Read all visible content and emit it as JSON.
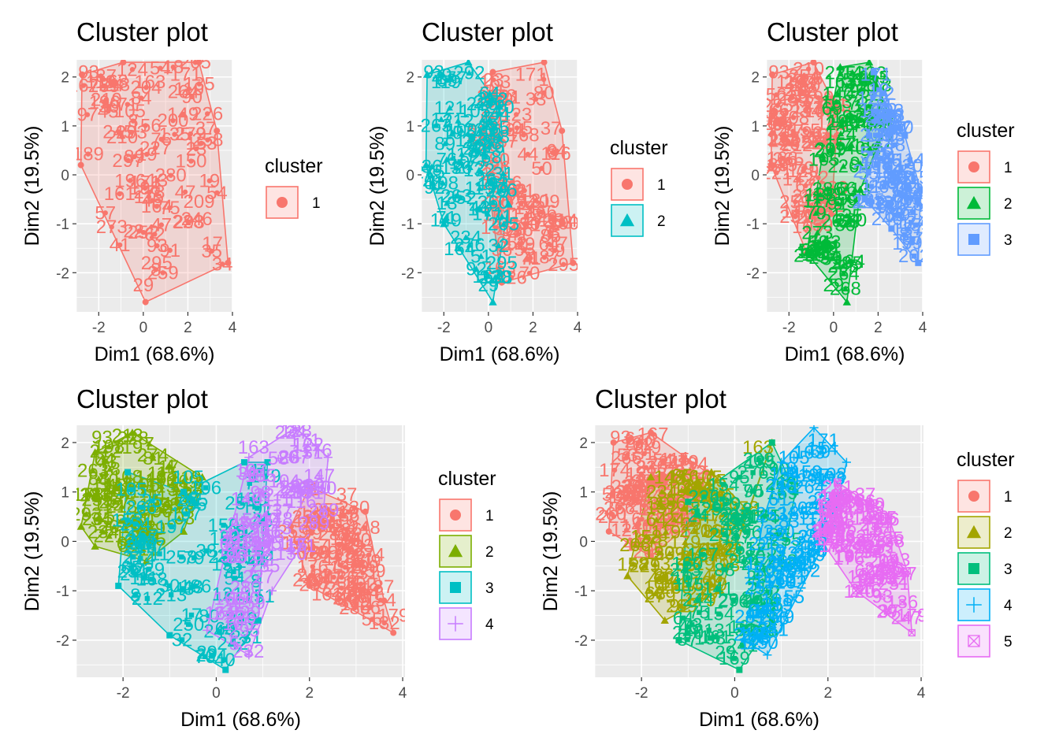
{
  "figure": {
    "background": "#ffffff",
    "panel_background": "#ebebeb",
    "grid_color": "#ffffff",
    "palette": {
      "k1": [
        "#F8766D"
      ],
      "k2": [
        "#F8766D",
        "#00BFC4"
      ],
      "k3": [
        "#F8766D",
        "#00BA38",
        "#619CFF"
      ],
      "k4": [
        "#F8766D",
        "#7CAE00",
        "#00BFC4",
        "#C77CFF"
      ],
      "k5": [
        "#F8766D",
        "#A3A500",
        "#00BF7D",
        "#00B0F6",
        "#E76BF3"
      ]
    }
  },
  "chart_data": [
    {
      "type": "scatter",
      "title": "Cluster plot",
      "xlabel": "Dim1 (68.6%)",
      "ylabel": "Dim2 (19.5%)",
      "xticks": [
        -2,
        0,
        2,
        4
      ],
      "yticks": [
        -2,
        -1,
        0,
        1,
        2
      ],
      "xlim": [
        -3.0,
        4.0
      ],
      "ylim": [
        -2.8,
        2.35
      ],
      "legend": {
        "title": "cluster",
        "entries": [
          "1"
        ]
      },
      "clusters": [
        {
          "label": "1",
          "shape": "circle",
          "hull": [
            [
              -2.75,
              2.05
            ],
            [
              -0.9,
              2.3
            ],
            [
              2.5,
              2.3
            ],
            [
              3.3,
              0.9
            ],
            [
              3.8,
              -1.8
            ],
            [
              0.1,
              -2.6
            ],
            [
              -2.8,
              0.2
            ]
          ],
          "labels": [
            {
              "t": "93",
              "x": -2.45,
              "y": 2.1
            },
            {
              "t": "119",
              "x": -1.9,
              "y": 1.9
            },
            {
              "t": "105",
              "x": -0.6,
              "y": 1.3
            },
            {
              "t": "163",
              "x": 0.3,
              "y": 1.9
            },
            {
              "t": "171",
              "x": 1.9,
              "y": 2.05
            },
            {
              "t": "264",
              "x": 1.8,
              "y": 1.7
            },
            {
              "t": "37",
              "x": 2.8,
              "y": 0.95
            },
            {
              "t": "246",
              "x": 2.4,
              "y": -0.9
            },
            {
              "t": "17",
              "x": 3.1,
              "y": -1.4
            },
            {
              "t": "29",
              "x": 0.0,
              "y": -2.25
            },
            {
              "t": "295",
              "x": 0.6,
              "y": -1.8
            },
            {
              "t": "209",
              "x": 2.5,
              "y": -0.55
            }
          ]
        }
      ]
    },
    {
      "type": "scatter",
      "title": "Cluster plot",
      "xlabel": "Dim1 (68.6%)",
      "ylabel": "Dim2 (19.5%)",
      "xticks": [
        -2,
        0,
        2,
        4
      ],
      "yticks": [
        -2,
        -1,
        0,
        1,
        2
      ],
      "xlim": [
        -3.0,
        4.0
      ],
      "ylim": [
        -2.8,
        2.35
      ],
      "legend": {
        "title": "cluster",
        "entries": [
          "1",
          "2"
        ]
      },
      "clusters": [
        {
          "label": "1",
          "shape": "circle",
          "hull": [
            [
              0.2,
              2.1
            ],
            [
              2.5,
              2.3
            ],
            [
              3.3,
              0.9
            ],
            [
              3.8,
              -1.8
            ],
            [
              0.6,
              -2.2
            ],
            [
              -0.3,
              0.8
            ]
          ],
          "labels": [
            {
              "t": "163",
              "x": 0.3,
              "y": 1.9
            },
            {
              "t": "171",
              "x": 1.9,
              "y": 2.05
            },
            {
              "t": "37",
              "x": 2.8,
              "y": 0.95
            },
            {
              "t": "246",
              "x": 2.4,
              "y": -0.9
            },
            {
              "t": "17",
              "x": 3.1,
              "y": -1.4
            },
            {
              "t": "209",
              "x": 2.5,
              "y": -0.55
            }
          ]
        },
        {
          "label": "2",
          "shape": "triangle",
          "hull": [
            [
              -2.75,
              2.05
            ],
            [
              -0.9,
              2.3
            ],
            [
              0.5,
              1.4
            ],
            [
              0.9,
              -0.6
            ],
            [
              0.2,
              -2.6
            ],
            [
              -2.0,
              -1.0
            ],
            [
              -2.8,
              0.2
            ]
          ],
          "labels": [
            {
              "t": "93",
              "x": -2.45,
              "y": 2.1
            },
            {
              "t": "119",
              "x": -1.9,
              "y": 1.9
            },
            {
              "t": "105",
              "x": -0.6,
              "y": 1.3
            },
            {
              "t": "29",
              "x": 0.0,
              "y": -2.25
            },
            {
              "t": "295",
              "x": 0.6,
              "y": -1.8
            }
          ]
        }
      ]
    },
    {
      "type": "scatter",
      "title": "Cluster plot",
      "xlabel": "Dim1 (68.6%)",
      "ylabel": "Dim2 (19.5%)",
      "xticks": [
        -2,
        0,
        2,
        4
      ],
      "yticks": [
        -2,
        -1,
        0,
        1,
        2
      ],
      "xlim": [
        -3.0,
        4.0
      ],
      "ylim": [
        -2.8,
        2.35
      ],
      "legend": {
        "title": "cluster",
        "entries": [
          "1",
          "2",
          "3"
        ]
      },
      "clusters": [
        {
          "label": "1",
          "shape": "circle",
          "hull": [
            [
              -2.75,
              2.05
            ],
            [
              -0.9,
              2.3
            ],
            [
              0.2,
              1.3
            ],
            [
              -0.1,
              -0.8
            ],
            [
              -1.2,
              -1.6
            ],
            [
              -2.8,
              0.2
            ]
          ],
          "labels": [
            {
              "t": "93",
              "x": -2.45,
              "y": 2.1
            },
            {
              "t": "119",
              "x": -1.9,
              "y": 1.9
            },
            {
              "t": "105",
              "x": -0.6,
              "y": 1.3
            }
          ]
        },
        {
          "label": "2",
          "shape": "triangle",
          "hull": [
            [
              0.3,
              2.2
            ],
            [
              1.6,
              2.3
            ],
            [
              2.5,
              1.2
            ],
            [
              1.2,
              -0.3
            ],
            [
              0.6,
              -2.6
            ],
            [
              -1.2,
              -1.6
            ],
            [
              -0.5,
              0.4
            ]
          ],
          "labels": [
            {
              "t": "163",
              "x": 0.3,
              "y": 1.9
            },
            {
              "t": "264",
              "x": 1.9,
              "y": 1.1
            },
            {
              "t": "29",
              "x": 0.0,
              "y": -2.25
            },
            {
              "t": "295",
              "x": 0.6,
              "y": -1.8
            }
          ]
        },
        {
          "label": "3",
          "shape": "square",
          "hull": [
            [
              1.8,
              2.1
            ],
            [
              3.2,
              0.8
            ],
            [
              3.9,
              -0.3
            ],
            [
              3.8,
              -1.8
            ],
            [
              2.6,
              -1.1
            ],
            [
              1.4,
              -0.5
            ],
            [
              1.6,
              0.8
            ]
          ],
          "labels": [
            {
              "t": "171",
              "x": 1.9,
              "y": 2.05
            },
            {
              "t": "246",
              "x": 2.4,
              "y": -0.9
            },
            {
              "t": "17",
              "x": 3.1,
              "y": -1.4
            }
          ]
        }
      ]
    },
    {
      "type": "scatter",
      "title": "Cluster plot",
      "xlabel": "Dim1 (68.6%)",
      "ylabel": "Dim2 (19.5%)",
      "xticks": [
        -2,
        0,
        2,
        4
      ],
      "yticks": [
        -2,
        -1,
        0,
        1,
        2
      ],
      "xlim": [
        -3.0,
        4.05
      ],
      "ylim": [
        -2.75,
        2.35
      ],
      "legend": {
        "title": "cluster",
        "entries": [
          "1",
          "2",
          "3",
          "4"
        ]
      },
      "clusters": [
        {
          "label": "1",
          "shape": "circle",
          "hull": [
            [
              2.0,
              1.1
            ],
            [
              3.2,
              0.6
            ],
            [
              3.6,
              -1.2
            ],
            [
              3.8,
              -1.85
            ],
            [
              2.0,
              -0.9
            ],
            [
              1.6,
              0.3
            ]
          ],
          "labels": [
            {
              "t": "37",
              "x": 2.8,
              "y": 0.95
            },
            {
              "t": "209",
              "x": 3.2,
              "y": -0.4
            },
            {
              "t": "259",
              "x": 3.3,
              "y": -0.6
            },
            {
              "t": "246",
              "x": 2.8,
              "y": -1.0
            },
            {
              "t": "179",
              "x": 3.8,
              "y": -1.5
            }
          ]
        },
        {
          "label": "2",
          "shape": "triangle",
          "hull": [
            [
              -2.6,
              1.8
            ],
            [
              -1.8,
              2.2
            ],
            [
              -0.3,
              1.3
            ],
            [
              -0.7,
              0.2
            ],
            [
              -1.5,
              -0.4
            ],
            [
              -2.6,
              -0.1
            ],
            [
              -2.9,
              0.3
            ]
          ],
          "labels": [
            {
              "t": "93",
              "x": -2.45,
              "y": 2.1
            },
            {
              "t": "119",
              "x": -1.9,
              "y": 1.9
            },
            {
              "t": "148",
              "x": -1.4,
              "y": 1.3
            }
          ]
        },
        {
          "label": "3",
          "shape": "square",
          "hull": [
            [
              -1.9,
              1.4
            ],
            [
              -0.7,
              1.0
            ],
            [
              0.6,
              1.6
            ],
            [
              1.1,
              1.6
            ],
            [
              0.9,
              -1.6
            ],
            [
              0.2,
              -2.6
            ],
            [
              -1.0,
              -1.9
            ],
            [
              -2.1,
              -0.9
            ]
          ],
          "labels": [
            {
              "t": "105",
              "x": -0.6,
              "y": 1.3
            },
            {
              "t": "29",
              "x": -0.2,
              "y": -2.25
            }
          ]
        },
        {
          "label": "4",
          "shape": "plus",
          "hull": [
            [
              0.7,
              1.7
            ],
            [
              1.7,
              2.3
            ],
            [
              2.4,
              1.7
            ],
            [
              2.3,
              0.6
            ],
            [
              1.2,
              -1.0
            ],
            [
              0.7,
              -2.3
            ],
            [
              -0.2,
              -1.8
            ],
            [
              0.3,
              0.2
            ]
          ],
          "labels": [
            {
              "t": "163",
              "x": 0.8,
              "y": 1.9
            },
            {
              "t": "171",
              "x": 1.9,
              "y": 2.05
            },
            {
              "t": "264",
              "x": 1.7,
              "y": 1.1
            },
            {
              "t": "295",
              "x": 0.6,
              "y": -1.8
            }
          ]
        }
      ]
    },
    {
      "type": "scatter",
      "title": "Cluster plot",
      "xlabel": "Dim1 (68.6%)",
      "ylabel": "Dim2 (19.5%)",
      "xticks": [
        -2,
        0,
        2,
        4
      ],
      "yticks": [
        -2,
        -1,
        0,
        1,
        2
      ],
      "xlim": [
        -3.0,
        4.05
      ],
      "ylim": [
        -2.75,
        2.35
      ],
      "legend": {
        "title": "cluster",
        "entries": [
          "1",
          "2",
          "3",
          "4",
          "5"
        ]
      },
      "clusters": [
        {
          "label": "1",
          "shape": "circle",
          "hull": [
            [
              -2.6,
              2.0
            ],
            [
              -1.8,
              2.2
            ],
            [
              -0.6,
              1.4
            ],
            [
              -0.9,
              0.4
            ],
            [
              -1.8,
              -0.3
            ],
            [
              -2.7,
              0.2
            ]
          ],
          "labels": [
            {
              "t": "93",
              "x": -2.45,
              "y": 2.1
            },
            {
              "t": "119",
              "x": -1.9,
              "y": 1.9
            }
          ]
        },
        {
          "label": "2",
          "shape": "triangle",
          "hull": [
            [
              -1.8,
              1.3
            ],
            [
              -0.5,
              1.4
            ],
            [
              0.3,
              0.6
            ],
            [
              0.8,
              2.0
            ],
            [
              -0.3,
              -1.0
            ],
            [
              -1.5,
              -1.6
            ],
            [
              -2.3,
              -0.7
            ]
          ],
          "labels": [
            {
              "t": "148",
              "x": -1.4,
              "y": 1.3
            },
            {
              "t": "105",
              "x": -0.6,
              "y": 1.3
            },
            {
              "t": "163",
              "x": 0.5,
              "y": 1.9
            }
          ]
        },
        {
          "label": "3",
          "shape": "square",
          "hull": [
            [
              -1.0,
              0.8
            ],
            [
              0.8,
              2.0
            ],
            [
              1.3,
              1.0
            ],
            [
              0.8,
              -1.6
            ],
            [
              0.1,
              -2.6
            ],
            [
              -1.2,
              -2.0
            ]
          ],
          "labels": [
            {
              "t": "29",
              "x": -0.2,
              "y": -2.25
            },
            {
              "t": "295",
              "x": 0.6,
              "y": -1.8
            }
          ]
        },
        {
          "label": "4",
          "shape": "plus",
          "hull": [
            [
              1.0,
              1.6
            ],
            [
              1.7,
              2.3
            ],
            [
              2.4,
              1.6
            ],
            [
              2.1,
              0.3
            ],
            [
              0.7,
              -2.3
            ],
            [
              0.2,
              -2.0
            ],
            [
              0.6,
              0.4
            ]
          ],
          "labels": [
            {
              "t": "171",
              "x": 1.9,
              "y": 2.05
            },
            {
              "t": "264",
              "x": 1.6,
              "y": 1.1
            },
            {
              "t": "255",
              "x": 1.9,
              "y": 0.8
            }
          ]
        },
        {
          "label": "5",
          "shape": "squarecross",
          "hull": [
            [
              2.2,
              1.2
            ],
            [
              3.3,
              0.5
            ],
            [
              3.7,
              -0.6
            ],
            [
              3.8,
              -1.85
            ],
            [
              2.6,
              -1.0
            ],
            [
              1.8,
              0.1
            ]
          ],
          "labels": [
            {
              "t": "37",
              "x": 2.8,
              "y": 0.95
            },
            {
              "t": "209",
              "x": 3.2,
              "y": -0.4
            },
            {
              "t": "259",
              "x": 3.3,
              "y": -0.6
            },
            {
              "t": "246",
              "x": 2.8,
              "y": -1.0
            },
            {
              "t": "179",
              "x": 3.8,
              "y": -1.5
            }
          ]
        }
      ]
    }
  ]
}
